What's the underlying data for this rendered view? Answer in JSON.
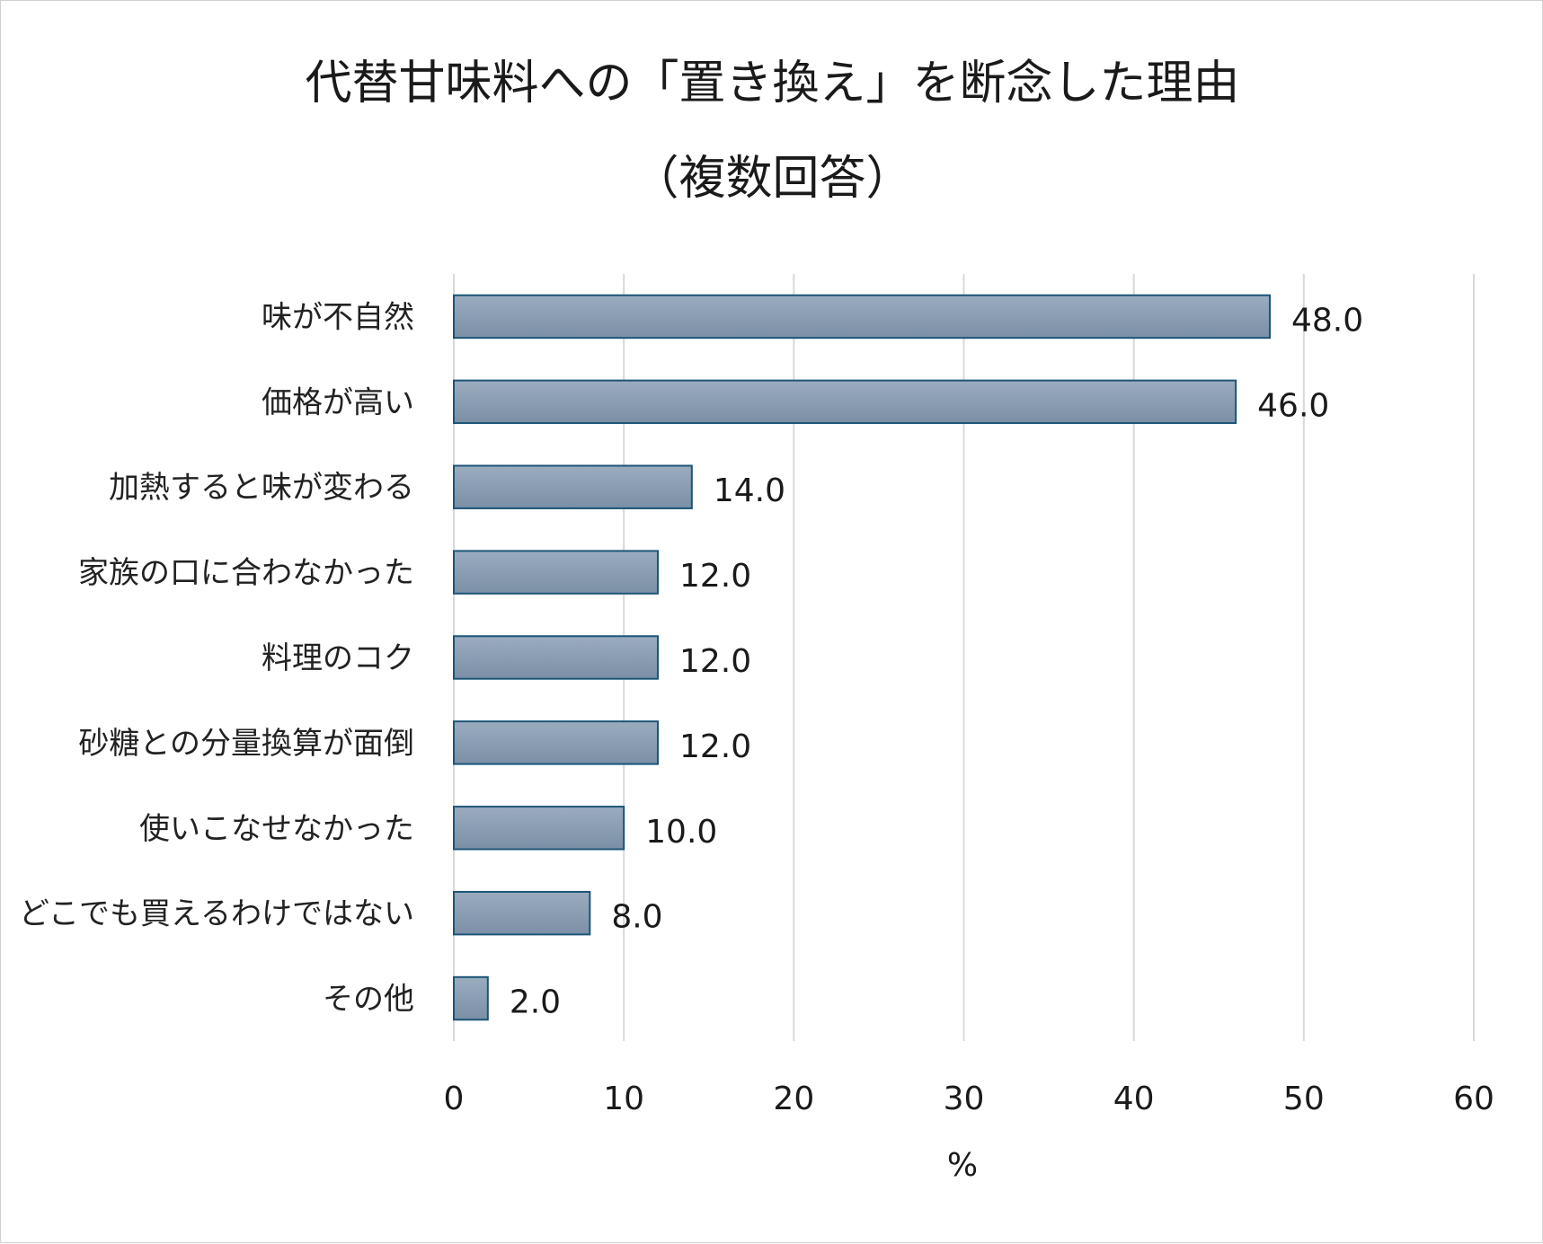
{
  "chart_data": {
    "type": "bar",
    "orientation": "horizontal",
    "title": "代替甘味料への「置き換え」を断念した理由",
    "subtitle": "（複数回答）",
    "categories": [
      "味が不自然",
      "価格が高い",
      "加熱すると味が変わる",
      "家族の口に合わなかった",
      "料理のコク",
      "砂糖との分量換算が面倒",
      "使いこなせなかった",
      "どこでも買えるわけではない",
      "その他"
    ],
    "values": [
      48.0,
      46.0,
      14.0,
      12.0,
      12.0,
      12.0,
      10.0,
      8.0,
      2.0
    ],
    "value_labels": [
      "48.0",
      "46.0",
      "14.0",
      "12.0",
      "12.0",
      "12.0",
      "10.0",
      "8.0",
      "2.0"
    ],
    "xlabel": "%",
    "ylabel": "",
    "xlim": [
      0,
      60
    ],
    "xticks": [
      0,
      10,
      20,
      30,
      40,
      50,
      60
    ],
    "grid": "vertical",
    "legend": "none",
    "colors": {
      "bar_top": "#9bacbf",
      "bar_bottom": "#7b8fa6",
      "bar_border": "#1c5578",
      "grid": "#d9d9d9"
    }
  }
}
